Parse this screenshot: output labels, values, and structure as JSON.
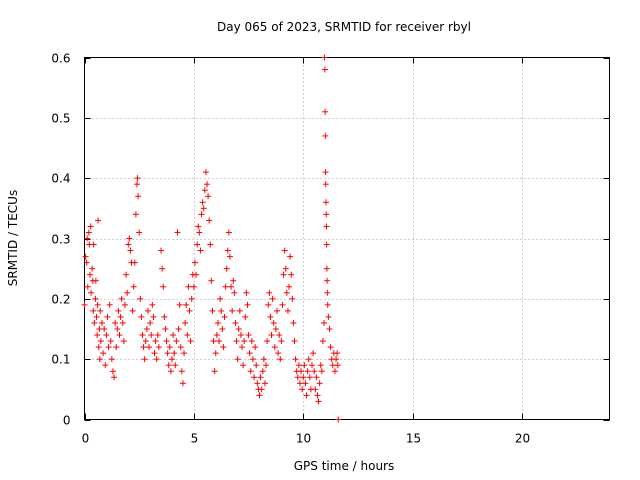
{
  "chart_data": {
    "type": "scatter",
    "title": "Day 065 of 2023, SRMTID for receiver rbyl",
    "xlabel": "GPS time / hours",
    "ylabel": "SRMTID / TECUs",
    "xlim": [
      0,
      24
    ],
    "ylim": [
      0,
      0.6
    ],
    "xticks": [
      0,
      5,
      10,
      15,
      20
    ],
    "xtick_labels": [
      "0",
      "5",
      "10",
      "15",
      "20"
    ],
    "yticks": [
      0,
      0.1,
      0.2,
      0.3,
      0.4,
      0.5,
      0.6
    ],
    "ytick_labels": [
      "0",
      "0.1",
      "0.2",
      "0.3",
      "0.4",
      "0.5",
      "0.6"
    ],
    "grid": true,
    "marker": "+",
    "color": "#ff0000",
    "series": [
      {
        "name": "SRMTID",
        "points": [
          [
            0.0,
            0.19
          ],
          [
            0.05,
            0.27
          ],
          [
            0.1,
            0.26
          ],
          [
            0.12,
            0.3
          ],
          [
            0.15,
            0.22
          ],
          [
            0.2,
            0.31
          ],
          [
            0.22,
            0.29
          ],
          [
            0.25,
            0.24
          ],
          [
            0.28,
            0.32
          ],
          [
            0.3,
            0.21
          ],
          [
            0.35,
            0.25
          ],
          [
            0.38,
            0.23
          ],
          [
            0.4,
            0.18
          ],
          [
            0.42,
            0.29
          ],
          [
            0.45,
            0.16
          ],
          [
            0.5,
            0.2
          ],
          [
            0.52,
            0.23
          ],
          [
            0.55,
            0.17
          ],
          [
            0.58,
            0.14
          ],
          [
            0.6,
            0.19
          ],
          [
            0.62,
            0.33
          ],
          [
            0.65,
            0.12
          ],
          [
            0.68,
            0.15
          ],
          [
            0.7,
            0.1
          ],
          [
            0.72,
            0.18
          ],
          [
            0.75,
            0.13
          ],
          [
            0.8,
            0.16
          ],
          [
            0.85,
            0.11
          ],
          [
            0.9,
            0.15
          ],
          [
            0.95,
            0.09
          ],
          [
            1.0,
            0.14
          ],
          [
            1.05,
            0.17
          ],
          [
            1.1,
            0.12
          ],
          [
            1.15,
            0.19
          ],
          [
            1.2,
            0.13
          ],
          [
            1.25,
            0.1
          ],
          [
            1.3,
            0.08
          ],
          [
            1.35,
            0.07
          ],
          [
            1.4,
            0.16
          ],
          [
            1.45,
            0.12
          ],
          [
            1.5,
            0.15
          ],
          [
            1.55,
            0.18
          ],
          [
            1.6,
            0.14
          ],
          [
            1.65,
            0.17
          ],
          [
            1.7,
            0.2
          ],
          [
            1.75,
            0.16
          ],
          [
            1.8,
            0.13
          ],
          [
            1.85,
            0.19
          ],
          [
            1.9,
            0.24
          ],
          [
            1.95,
            0.21
          ],
          [
            2.0,
            0.29
          ],
          [
            2.05,
            0.3
          ],
          [
            2.1,
            0.28
          ],
          [
            2.15,
            0.26
          ],
          [
            2.2,
            0.18
          ],
          [
            2.25,
            0.22
          ],
          [
            2.3,
            0.26
          ],
          [
            2.35,
            0.34
          ],
          [
            2.4,
            0.39
          ],
          [
            2.42,
            0.4
          ],
          [
            2.45,
            0.37
          ],
          [
            2.5,
            0.31
          ],
          [
            2.55,
            0.2
          ],
          [
            2.6,
            0.17
          ],
          [
            2.65,
            0.14
          ],
          [
            2.7,
            0.12
          ],
          [
            2.75,
            0.1
          ],
          [
            2.8,
            0.13
          ],
          [
            2.85,
            0.15
          ],
          [
            2.9,
            0.18
          ],
          [
            2.95,
            0.12
          ],
          [
            3.0,
            0.16
          ],
          [
            3.05,
            0.14
          ],
          [
            3.1,
            0.19
          ],
          [
            3.15,
            0.17
          ],
          [
            3.2,
            0.11
          ],
          [
            3.25,
            0.13
          ],
          [
            3.3,
            0.1
          ],
          [
            3.35,
            0.14
          ],
          [
            3.4,
            0.12
          ],
          [
            3.5,
            0.28
          ],
          [
            3.55,
            0.25
          ],
          [
            3.6,
            0.22
          ],
          [
            3.65,
            0.17
          ],
          [
            3.7,
            0.15
          ],
          [
            3.75,
            0.13
          ],
          [
            3.8,
            0.11
          ],
          [
            3.85,
            0.09
          ],
          [
            3.9,
            0.12
          ],
          [
            3.95,
            0.08
          ],
          [
            4.0,
            0.1
          ],
          [
            4.05,
            0.14
          ],
          [
            4.1,
            0.11
          ],
          [
            4.15,
            0.09
          ],
          [
            4.2,
            0.13
          ],
          [
            4.25,
            0.31
          ],
          [
            4.3,
            0.15
          ],
          [
            4.35,
            0.19
          ],
          [
            4.4,
            0.12
          ],
          [
            4.45,
            0.08
          ],
          [
            4.5,
            0.06
          ],
          [
            4.55,
            0.11
          ],
          [
            4.6,
            0.16
          ],
          [
            4.65,
            0.19
          ],
          [
            4.7,
            0.14
          ],
          [
            4.75,
            0.22
          ],
          [
            4.8,
            0.18
          ],
          [
            4.85,
            0.13
          ],
          [
            4.9,
            0.2
          ],
          [
            4.95,
            0.24
          ],
          [
            5.0,
            0.22
          ],
          [
            5.05,
            0.26
          ],
          [
            5.1,
            0.24
          ],
          [
            5.15,
            0.29
          ],
          [
            5.2,
            0.32
          ],
          [
            5.25,
            0.31
          ],
          [
            5.3,
            0.28
          ],
          [
            5.35,
            0.34
          ],
          [
            5.4,
            0.36
          ],
          [
            5.45,
            0.35
          ],
          [
            5.5,
            0.38
          ],
          [
            5.55,
            0.41
          ],
          [
            5.6,
            0.39
          ],
          [
            5.65,
            0.37
          ],
          [
            5.7,
            0.33
          ],
          [
            5.75,
            0.29
          ],
          [
            5.8,
            0.23
          ],
          [
            5.85,
            0.18
          ],
          [
            5.9,
            0.13
          ],
          [
            5.95,
            0.08
          ],
          [
            6.0,
            0.11
          ],
          [
            6.05,
            0.14
          ],
          [
            6.1,
            0.16
          ],
          [
            6.15,
            0.13
          ],
          [
            6.2,
            0.2
          ],
          [
            6.25,
            0.18
          ],
          [
            6.3,
            0.15
          ],
          [
            6.35,
            0.12
          ],
          [
            6.4,
            0.17
          ],
          [
            6.45,
            0.22
          ],
          [
            6.5,
            0.25
          ],
          [
            6.55,
            0.28
          ],
          [
            6.6,
            0.31
          ],
          [
            6.65,
            0.27
          ],
          [
            6.7,
            0.22
          ],
          [
            6.75,
            0.18
          ],
          [
            6.8,
            0.23
          ],
          [
            6.85,
            0.21
          ],
          [
            6.9,
            0.16
          ],
          [
            6.95,
            0.13
          ],
          [
            7.0,
            0.1
          ],
          [
            7.05,
            0.15
          ],
          [
            7.1,
            0.18
          ],
          [
            7.15,
            0.14
          ],
          [
            7.2,
            0.12
          ],
          [
            7.25,
            0.09
          ],
          [
            7.3,
            0.13
          ],
          [
            7.35,
            0.17
          ],
          [
            7.4,
            0.21
          ],
          [
            7.45,
            0.19
          ],
          [
            7.5,
            0.14
          ],
          [
            7.55,
            0.11
          ],
          [
            7.6,
            0.08
          ],
          [
            7.65,
            0.13
          ],
          [
            7.7,
            0.1
          ],
          [
            7.75,
            0.07
          ],
          [
            7.8,
            0.12
          ],
          [
            7.85,
            0.09
          ],
          [
            7.9,
            0.06
          ],
          [
            7.95,
            0.05
          ],
          [
            8.0,
            0.04
          ],
          [
            8.05,
            0.07
          ],
          [
            8.1,
            0.05
          ],
          [
            8.15,
            0.08
          ],
          [
            8.2,
            0.1
          ],
          [
            8.25,
            0.06
          ],
          [
            8.3,
            0.09
          ],
          [
            8.35,
            0.13
          ],
          [
            8.4,
            0.19
          ],
          [
            8.45,
            0.21
          ],
          [
            8.5,
            0.17
          ],
          [
            8.55,
            0.14
          ],
          [
            8.6,
            0.2
          ],
          [
            8.65,
            0.16
          ],
          [
            8.7,
            0.12
          ],
          [
            8.75,
            0.15
          ],
          [
            8.8,
            0.18
          ],
          [
            8.85,
            0.11
          ],
          [
            8.9,
            0.14
          ],
          [
            8.95,
            0.1
          ],
          [
            9.0,
            0.13
          ],
          [
            9.05,
            0.19
          ],
          [
            9.1,
            0.24
          ],
          [
            9.15,
            0.28
          ],
          [
            9.2,
            0.25
          ],
          [
            9.25,
            0.21
          ],
          [
            9.3,
            0.18
          ],
          [
            9.35,
            0.22
          ],
          [
            9.4,
            0.27
          ],
          [
            9.45,
            0.24
          ],
          [
            9.5,
            0.2
          ],
          [
            9.55,
            0.16
          ],
          [
            9.6,
            0.13
          ],
          [
            9.65,
            0.1
          ],
          [
            9.7,
            0.08
          ],
          [
            9.75,
            0.07
          ],
          [
            9.8,
            0.09
          ],
          [
            9.85,
            0.06
          ],
          [
            9.9,
            0.08
          ],
          [
            9.95,
            0.05
          ],
          [
            10.0,
            0.07
          ],
          [
            10.05,
            0.09
          ],
          [
            10.1,
            0.06
          ],
          [
            10.15,
            0.04
          ],
          [
            10.2,
            0.08
          ],
          [
            10.25,
            0.1
          ],
          [
            10.3,
            0.07
          ],
          [
            10.35,
            0.05
          ],
          [
            10.4,
            0.09
          ],
          [
            10.45,
            0.11
          ],
          [
            10.5,
            0.08
          ],
          [
            10.55,
            0.05
          ],
          [
            10.6,
            0.07
          ],
          [
            10.65,
            0.04
          ],
          [
            10.7,
            0.03
          ],
          [
            10.75,
            0.06
          ],
          [
            10.8,
            0.09
          ],
          [
            10.85,
            0.08
          ],
          [
            10.9,
            0.13
          ],
          [
            10.95,
            0.16
          ],
          [
            10.97,
            0.6
          ],
          [
            10.99,
            0.58
          ],
          [
            11.0,
            0.51
          ],
          [
            11.01,
            0.47
          ],
          [
            11.02,
            0.41
          ],
          [
            11.03,
            0.39
          ],
          [
            11.04,
            0.36
          ],
          [
            11.05,
            0.34
          ],
          [
            11.06,
            0.32
          ],
          [
            11.07,
            0.29
          ],
          [
            11.08,
            0.25
          ],
          [
            11.09,
            0.23
          ],
          [
            11.1,
            0.21
          ],
          [
            11.12,
            0.19
          ],
          [
            11.15,
            0.17
          ],
          [
            11.2,
            0.15
          ],
          [
            11.25,
            0.12
          ],
          [
            11.3,
            0.1
          ],
          [
            11.35,
            0.09
          ],
          [
            11.4,
            0.11
          ],
          [
            11.45,
            0.08
          ],
          [
            11.5,
            0.1
          ],
          [
            11.55,
            0.11
          ],
          [
            11.58,
            0.09
          ],
          [
            11.6,
            0.0
          ]
        ]
      }
    ]
  }
}
